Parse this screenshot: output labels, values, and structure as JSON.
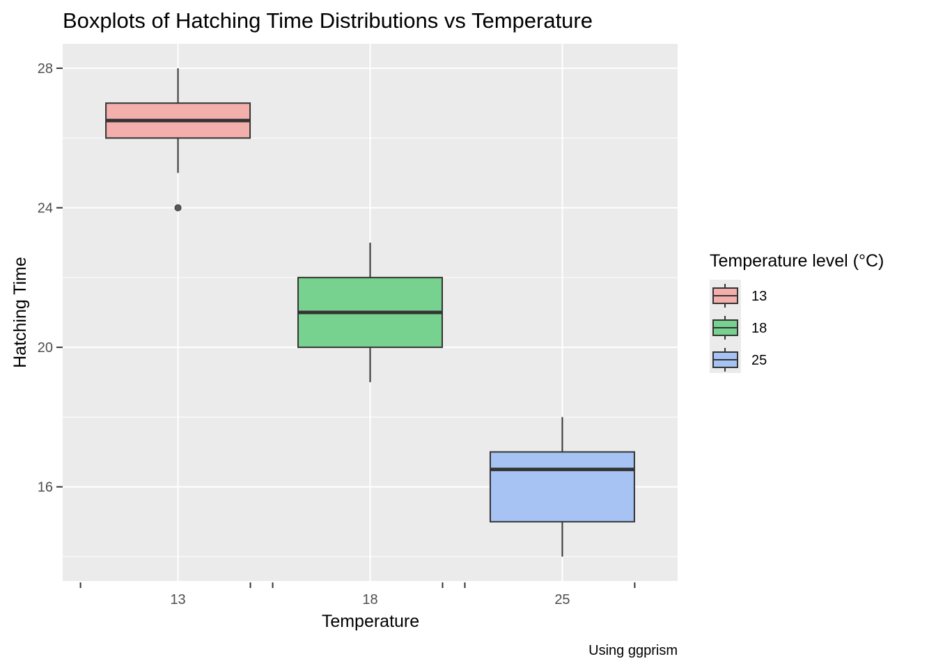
{
  "chart_data": {
    "type": "boxplot",
    "title": "Boxplots of Hatching Time Distributions vs Temperature",
    "xlabel": "Temperature",
    "ylabel": "Hatching Time",
    "caption": "Using ggprism",
    "categories": [
      "13",
      "18",
      "25"
    ],
    "ylim": [
      13.3,
      28.7
    ],
    "yticks": [
      16,
      20,
      24,
      28
    ],
    "y_minor_gridlines": [
      14,
      18,
      22,
      26
    ],
    "grid": true,
    "legend": {
      "title": "Temperature level (°C)",
      "position": "right",
      "entries": [
        "13",
        "18",
        "25"
      ]
    },
    "series": [
      {
        "name": "13",
        "color": "#F8766D",
        "min": 25,
        "q1": 26,
        "median": 26.5,
        "q3": 27,
        "max": 28,
        "outliers": [
          24
        ]
      },
      {
        "name": "18",
        "color": "#00BA38",
        "min": 19,
        "q1": 20,
        "median": 21,
        "q3": 22,
        "max": 23,
        "outliers": []
      },
      {
        "name": "25",
        "color": "#619CFF",
        "min": 14,
        "q1": 15,
        "median": 16.5,
        "q3": 17,
        "max": 18,
        "outliers": []
      }
    ],
    "colors": {
      "panel_background": "#EBEBEB",
      "gridline": "#FFFFFF",
      "box_outline": "#333333",
      "fill_13": "#F2AFAC",
      "fill_18": "#77D18F",
      "fill_25": "#A6C3F4"
    }
  }
}
